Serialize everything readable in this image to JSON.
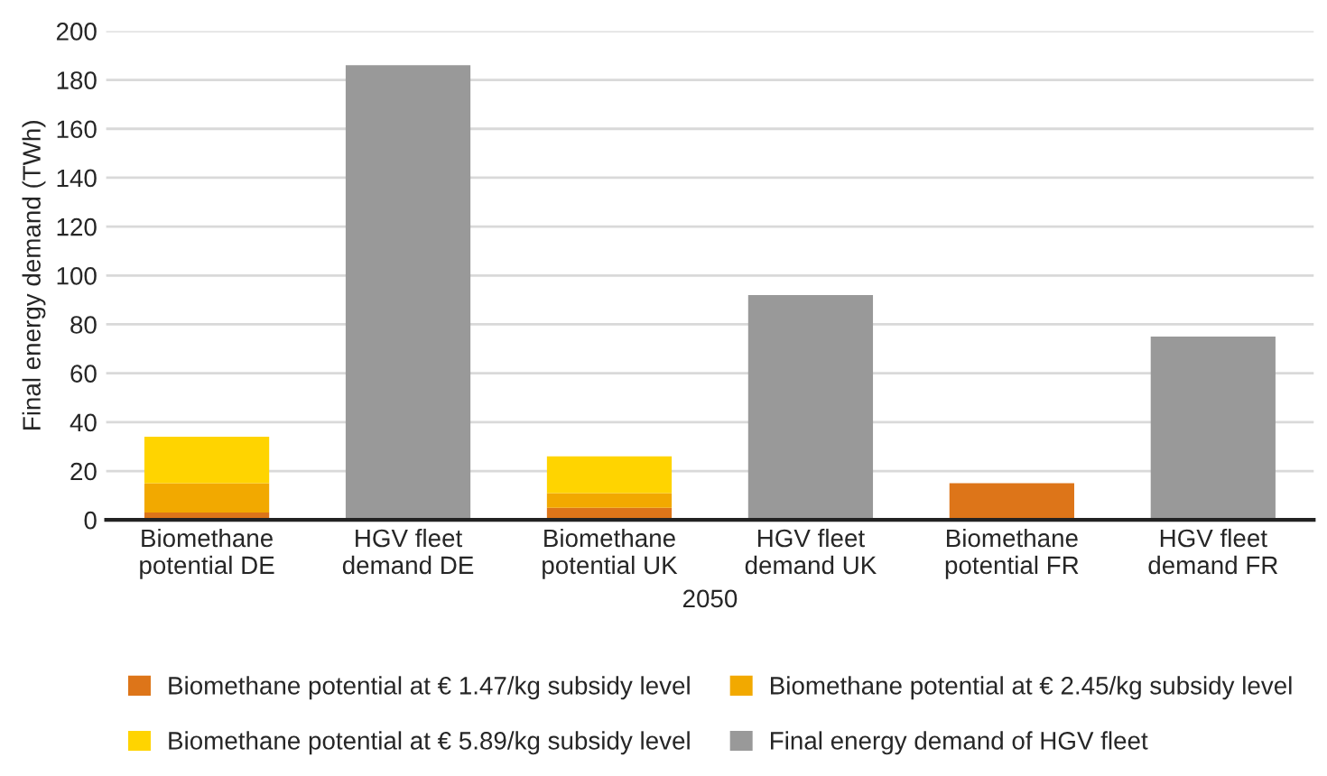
{
  "chart_data": {
    "type": "bar",
    "stacked": true,
    "xlabel": "2050",
    "ylabel": "Final energy demand (TWh)",
    "categories": [
      "Biomethane\npotential DE",
      "HGV fleet\ndemand DE",
      "Biomethane\npotential UK",
      "HGV fleet\ndemand UK",
      "Biomethane\npotential FR",
      "HGV fleet\ndemand FR"
    ],
    "series": [
      {
        "name": "Biomethane potential at € 1.47/kg subsidy level",
        "color": "#dd7519",
        "values": [
          3,
          null,
          5,
          null,
          15,
          null
        ]
      },
      {
        "name": "Biomethane potential at € 2.45/kg subsidy level",
        "color": "#f2a900",
        "values": [
          12,
          null,
          6,
          null,
          null,
          null
        ]
      },
      {
        "name": "Biomethane potential at € 5.89/kg subsidy level",
        "color": "#ffd400",
        "values": [
          19,
          null,
          15,
          null,
          null,
          null
        ]
      },
      {
        "name": "Final energy demand of HGV fleet",
        "color": "#999999",
        "values": [
          null,
          186,
          null,
          92,
          null,
          75
        ]
      }
    ],
    "ylim": [
      0,
      200
    ],
    "yticks": [
      0,
      20,
      40,
      60,
      80,
      100,
      120,
      140,
      160,
      180,
      200
    ],
    "grid": "y",
    "legend": "bottom"
  }
}
